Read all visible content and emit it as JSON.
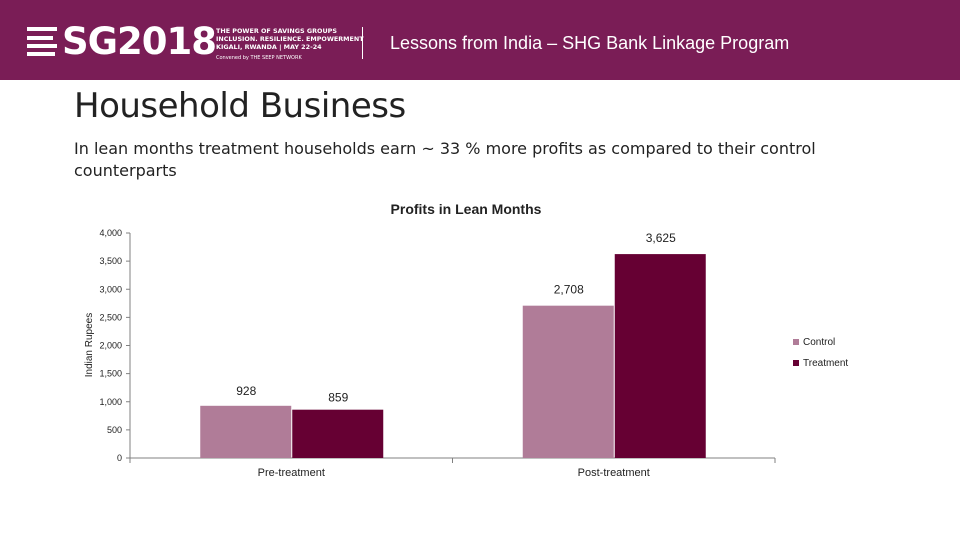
{
  "header": {
    "logo_text": "SG2018",
    "tagline_lines": [
      "THE POWER OF SAVINGS GROUPS",
      "INCLUSION. RESILIENCE. EMPOWERMENT",
      "KIGALI, RWANDA | MAY 22-24"
    ],
    "tagline_small": "Convened by THE SEEP NETWORK",
    "title": "Lessons from India – SHG Bank Linkage Program"
  },
  "slide": {
    "title": "Household Business",
    "subtitle": "In lean months treatment households earn ~ 33 % more profits  as compared to their control counterparts"
  },
  "colors": {
    "header_bg": "#7a1d56",
    "control": "#b07c98",
    "treatment": "#660033"
  },
  "chart_data": {
    "type": "bar",
    "title": "Profits in Lean Months",
    "ylabel": "Indian Rupees",
    "xlabel": "",
    "categories": [
      "Pre-treatment",
      "Post-treatment"
    ],
    "series": [
      {
        "name": "Control",
        "values": [
          928,
          2708
        ],
        "labels": [
          "928",
          "2,708"
        ]
      },
      {
        "name": "Treatment",
        "values": [
          859,
          3625
        ],
        "labels": [
          "859",
          "3,625"
        ]
      }
    ],
    "ylim": [
      0,
      4000
    ],
    "yticks": [
      0,
      500,
      1000,
      1500,
      2000,
      2500,
      3000,
      3500,
      4000
    ],
    "ytick_labels": [
      "0",
      "500",
      "1,000",
      "1,500",
      "2,000",
      "2,500",
      "3,000",
      "3,500",
      "4,000"
    ],
    "grid": false,
    "legend": "right"
  }
}
